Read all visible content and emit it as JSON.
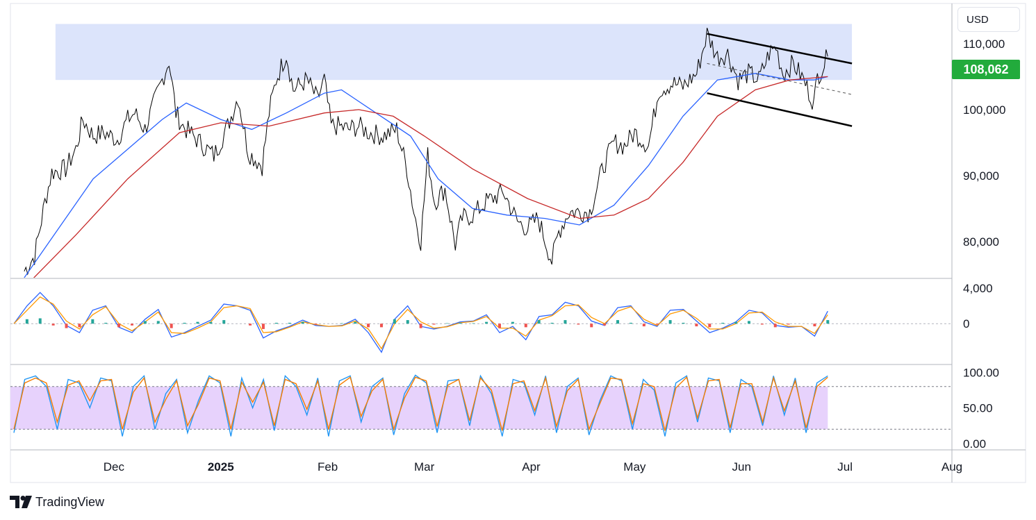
{
  "header": {
    "currency": "USD"
  },
  "brand": {
    "name": "TradingView",
    "logo_icon": "tradingview-logo-icon"
  },
  "chart_data": [
    {
      "type": "line",
      "pane": "price",
      "yticks": [
        "110,000",
        "100,000",
        "90,000",
        "80,000"
      ],
      "ytick_values": [
        110000,
        100000,
        90000,
        80000
      ],
      "ylim": [
        74500,
        116000
      ],
      "last_price": 108062,
      "last_price_label": "108,062",
      "last_price_color": "#22ab3c",
      "xlim": [
        "2024-11-01",
        "2025-08-01"
      ],
      "xticks": [
        {
          "label": "Dec",
          "date": "2024-12-01",
          "bold": false
        },
        {
          "label": "2025",
          "date": "2025-01-01",
          "bold": true
        },
        {
          "label": "Feb",
          "date": "2025-02-01",
          "bold": false
        },
        {
          "label": "Mar",
          "date": "2025-03-01",
          "bold": false
        },
        {
          "label": "Apr",
          "date": "2025-04-01",
          "bold": false
        },
        {
          "label": "May",
          "date": "2025-05-01",
          "bold": false
        },
        {
          "label": "Jun",
          "date": "2025-06-01",
          "bold": false
        },
        {
          "label": "Jul",
          "date": "2025-07-01",
          "bold": false
        },
        {
          "label": "Aug",
          "date": "2025-08-01",
          "bold": false
        }
      ],
      "series": [
        {
          "kind": "price",
          "color": "#000000",
          "points": [
            [
              "2024-11-05",
              75500
            ],
            [
              "2024-11-08",
              77800
            ],
            [
              "2024-11-11",
              86000
            ],
            [
              "2024-11-13",
              90500
            ],
            [
              "2024-11-17",
              91000
            ],
            [
              "2024-11-20",
              94000
            ],
            [
              "2024-11-22",
              98500
            ],
            [
              "2024-11-25",
              96000
            ],
            [
              "2024-11-28",
              96500
            ],
            [
              "2024-12-02",
              95500
            ],
            [
              "2024-12-05",
              98500
            ],
            [
              "2024-12-07",
              99500
            ],
            [
              "2024-12-10",
              97000
            ],
            [
              "2024-12-13",
              101500
            ],
            [
              "2024-12-16",
              106000
            ],
            [
              "2024-12-17",
              107500
            ],
            [
              "2024-12-19",
              99500
            ],
            [
              "2024-12-21",
              97500
            ],
            [
              "2024-12-24",
              96000
            ],
            [
              "2024-12-27",
              94500
            ],
            [
              "2024-12-30",
              93000
            ],
            [
              "2025-01-03",
              97500
            ],
            [
              "2025-01-06",
              102000
            ],
            [
              "2025-01-09",
              93500
            ],
            [
              "2025-01-13",
              91500
            ],
            [
              "2025-01-15",
              99500
            ],
            [
              "2025-01-17",
              104500
            ],
            [
              "2025-01-20",
              108500
            ],
            [
              "2025-01-22",
              103000
            ],
            [
              "2025-01-26",
              104500
            ],
            [
              "2025-01-29",
              101500
            ],
            [
              "2025-01-31",
              104500
            ],
            [
              "2025-02-02",
              97500
            ],
            [
              "2025-02-04",
              97500
            ],
            [
              "2025-02-07",
              97000
            ],
            [
              "2025-02-10",
              97500
            ],
            [
              "2025-02-13",
              96500
            ],
            [
              "2025-02-17",
              96000
            ],
            [
              "2025-02-21",
              97000
            ],
            [
              "2025-02-24",
              91000
            ],
            [
              "2025-02-26",
              84500
            ],
            [
              "2025-02-28",
              80000
            ],
            [
              "2025-03-02",
              93000
            ],
            [
              "2025-03-04",
              86000
            ],
            [
              "2025-03-07",
              88000
            ],
            [
              "2025-03-10",
              79500
            ],
            [
              "2025-03-12",
              83500
            ],
            [
              "2025-03-15",
              84000
            ],
            [
              "2025-03-19",
              86000
            ],
            [
              "2025-03-24",
              87500
            ],
            [
              "2025-03-28",
              83000
            ],
            [
              "2025-03-31",
              82000
            ],
            [
              "2025-04-03",
              83500
            ],
            [
              "2025-04-07",
              77000
            ],
            [
              "2025-04-09",
              81500
            ],
            [
              "2025-04-12",
              84500
            ],
            [
              "2025-04-15",
              84500
            ],
            [
              "2025-04-18",
              84500
            ],
            [
              "2025-04-22",
              91500
            ],
            [
              "2025-04-25",
              95000
            ],
            [
              "2025-04-28",
              94500
            ],
            [
              "2025-05-01",
              96500
            ],
            [
              "2025-05-05",
              94500
            ],
            [
              "2025-05-08",
              103000
            ],
            [
              "2025-05-12",
              104000
            ],
            [
              "2025-05-15",
              103500
            ],
            [
              "2025-05-19",
              105500
            ],
            [
              "2025-05-22",
              111500
            ],
            [
              "2025-05-25",
              108000
            ],
            [
              "2025-05-28",
              108500
            ],
            [
              "2025-05-31",
              104500
            ],
            [
              "2025-06-03",
              105500
            ],
            [
              "2025-06-06",
              104500
            ],
            [
              "2025-06-09",
              108500
            ],
            [
              "2025-06-11",
              109500
            ],
            [
              "2025-06-13",
              105500
            ],
            [
              "2025-06-16",
              107000
            ],
            [
              "2025-06-19",
              104500
            ],
            [
              "2025-06-22",
              101000
            ],
            [
              "2025-06-23",
              105000
            ],
            [
              "2025-06-25",
              107000
            ],
            [
              "2025-06-26",
              108062
            ]
          ]
        },
        {
          "kind": "ma-fast",
          "color": "#2962ff",
          "points": [
            [
              "2024-11-05",
              74500
            ],
            [
              "2024-11-15",
              82000
            ],
            [
              "2024-11-25",
              89500
            ],
            [
              "2024-12-05",
              94000
            ],
            [
              "2024-12-15",
              98500
            ],
            [
              "2024-12-22",
              101000
            ],
            [
              "2025-01-01",
              98500
            ],
            [
              "2025-01-10",
              97000
            ],
            [
              "2025-01-20",
              99500
            ],
            [
              "2025-01-31",
              102500
            ],
            [
              "2025-02-05",
              103000
            ],
            [
              "2025-02-15",
              99500
            ],
            [
              "2025-02-25",
              96000
            ],
            [
              "2025-03-05",
              89500
            ],
            [
              "2025-03-15",
              85000
            ],
            [
              "2025-03-25",
              84000
            ],
            [
              "2025-04-05",
              83500
            ],
            [
              "2025-04-15",
              82500
            ],
            [
              "2025-04-25",
              85500
            ],
            [
              "2025-05-05",
              91500
            ],
            [
              "2025-05-15",
              99000
            ],
            [
              "2025-05-25",
              104500
            ],
            [
              "2025-06-05",
              105500
            ],
            [
              "2025-06-15",
              104500
            ],
            [
              "2025-06-22",
              104500
            ],
            [
              "2025-06-26",
              105000
            ]
          ]
        },
        {
          "kind": "ma-slow",
          "color": "#c62828",
          "points": [
            [
              "2024-11-05",
              73000
            ],
            [
              "2024-11-20",
              81000
            ],
            [
              "2024-12-05",
              89500
            ],
            [
              "2024-12-20",
              96500
            ],
            [
              "2025-01-01",
              98000
            ],
            [
              "2025-01-15",
              97500
            ],
            [
              "2025-01-31",
              99500
            ],
            [
              "2025-02-10",
              100000
            ],
            [
              "2025-02-20",
              99000
            ],
            [
              "2025-03-01",
              96000
            ],
            [
              "2025-03-15",
              91000
            ],
            [
              "2025-03-31",
              86500
            ],
            [
              "2025-04-15",
              83500
            ],
            [
              "2025-04-25",
              84000
            ],
            [
              "2025-05-05",
              86500
            ],
            [
              "2025-05-15",
              92000
            ],
            [
              "2025-05-25",
              99000
            ],
            [
              "2025-06-05",
              103000
            ],
            [
              "2025-06-15",
              104500
            ],
            [
              "2025-06-26",
              105000
            ]
          ]
        }
      ],
      "zone": {
        "from": "2024-11-05",
        "to": "2025-07-03",
        "low": 104500,
        "high": 113000,
        "color": "#dce4fb"
      },
      "channel": {
        "upper": [
          [
            "2025-05-22",
            111500
          ],
          [
            "2025-07-03",
            107000
          ]
        ],
        "lower": [
          [
            "2025-05-22",
            102500
          ],
          [
            "2025-07-03",
            97500
          ]
        ],
        "middle": [
          [
            "2025-05-22",
            107000
          ],
          [
            "2025-07-03",
            102300
          ]
        ],
        "color": "#000000"
      }
    },
    {
      "type": "line",
      "pane": "macd",
      "yticks": [
        "4,000",
        "0"
      ],
      "ytick_values": [
        4000,
        0
      ],
      "ylim": [
        -4500,
        5000
      ],
      "series": [
        {
          "name": "",
          "color": "#2962ff",
          "values": [
            0,
            2000,
            3500,
            2000,
            -200,
            -1000,
            1500,
            2000,
            -400,
            -1000,
            500,
            1600,
            -1500,
            -1000,
            -300,
            400,
            2200,
            2000,
            1500,
            -1600,
            -800,
            -300,
            400,
            -200,
            -300,
            -200,
            500,
            -1000,
            -3200,
            500,
            2000,
            -300,
            -600,
            -300,
            200,
            300,
            1000,
            -1000,
            -300,
            -1800,
            800,
            1000,
            2400,
            2000,
            300,
            -200,
            1800,
            2000,
            200,
            -300,
            1500,
            1600,
            300,
            -1000,
            -500,
            200,
            1500,
            1200,
            -200,
            -400,
            -300,
            -1400,
            1400
          ]
        },
        {
          "name": "",
          "color": "#ff9800",
          "values": [
            0,
            1500,
            3000,
            2200,
            300,
            -600,
            1000,
            1900,
            0,
            -800,
            200,
            1300,
            -1000,
            -1100,
            -500,
            200,
            1800,
            2000,
            1700,
            -1000,
            -900,
            -400,
            200,
            -100,
            -300,
            -250,
            300,
            -600,
            -2800,
            0,
            1600,
            200,
            -500,
            -350,
            100,
            250,
            800,
            -500,
            -500,
            -1400,
            400,
            900,
            2000,
            2100,
            700,
            0,
            1400,
            1900,
            500,
            -200,
            1100,
            1500,
            600,
            -600,
            -600,
            0,
            1200,
            1300,
            200,
            -300,
            -300,
            -1100,
            1000
          ]
        },
        {
          "name": "",
          "color": "#26a69a",
          "values": [
            0,
            500,
            600,
            -200,
            -500,
            -400,
            500,
            100,
            -400,
            -200,
            300,
            300,
            -500,
            100,
            200,
            200,
            400,
            0,
            -200,
            -600,
            100,
            100,
            200,
            -100,
            0,
            50,
            200,
            -400,
            -400,
            500,
            400,
            -500,
            -100,
            50,
            100,
            50,
            200,
            -500,
            200,
            -400,
            400,
            100,
            400,
            -100,
            -400,
            -200,
            400,
            100,
            -300,
            -100,
            400,
            100,
            -300,
            -400,
            100,
            200,
            300,
            -100,
            -400,
            -100,
            0,
            -300,
            400
          ]
        }
      ]
    },
    {
      "type": "line",
      "pane": "stochastic-rsi",
      "yticks": [
        "100.00",
        "50.00",
        "0.00"
      ],
      "ytick_values": [
        100,
        50,
        0
      ],
      "ylim": [
        -8,
        110
      ],
      "bands": [
        20,
        80
      ],
      "band_color": "#e7d2fc",
      "series": [
        {
          "name": "",
          "color": "#2196f3",
          "values": [
            15,
            90,
            95,
            80,
            20,
            90,
            85,
            50,
            92,
            88,
            10,
            80,
            95,
            20,
            70,
            90,
            15,
            60,
            95,
            85,
            10,
            92,
            50,
            90,
            18,
            95,
            80,
            40,
            92,
            10,
            88,
            95,
            30,
            80,
            92,
            12,
            70,
            96,
            85,
            15,
            88,
            90,
            25,
            95,
            70,
            10,
            90,
            85,
            40,
            95,
            15,
            80,
            92,
            12,
            60,
            95,
            88,
            20,
            90,
            75,
            10,
            85,
            95,
            30,
            92,
            88,
            15,
            90,
            80,
            25,
            95,
            40,
            92,
            15,
            85,
            95
          ]
        },
        {
          "name": "",
          "color": "#f57c00",
          "values": [
            20,
            85,
            92,
            85,
            30,
            82,
            88,
            60,
            88,
            90,
            20,
            72,
            92,
            30,
            62,
            88,
            25,
            55,
            92,
            88,
            20,
            86,
            58,
            86,
            25,
            90,
            84,
            48,
            88,
            20,
            82,
            93,
            38,
            74,
            90,
            20,
            64,
            93,
            88,
            24,
            82,
            90,
            32,
            92,
            75,
            18,
            84,
            88,
            46,
            92,
            24,
            74,
            90,
            20,
            56,
            92,
            90,
            28,
            84,
            80,
            18,
            78,
            93,
            36,
            88,
            90,
            22,
            84,
            84,
            30,
            92,
            46,
            88,
            22,
            80,
            93
          ]
        }
      ]
    }
  ]
}
